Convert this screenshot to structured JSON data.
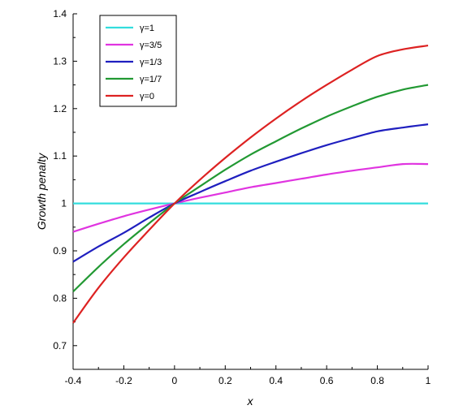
{
  "chart_data": {
    "type": "line",
    "title": "",
    "xlabel": "x",
    "ylabel": "Growth penalty",
    "xlim": [
      -0.4,
      1
    ],
    "ylim": [
      0.65,
      1.4
    ],
    "x_ticks": [
      -0.4,
      -0.2,
      0,
      0.2,
      0.4,
      0.6,
      0.8,
      1
    ],
    "x_tick_labels": [
      "-0.4",
      "-0.2",
      "0",
      "0.2",
      "0.4",
      "0.6",
      "0.8",
      "1"
    ],
    "y_ticks": [
      0.7,
      0.8,
      0.9,
      1,
      1.1,
      1.2,
      1.3,
      1.4
    ],
    "y_tick_labels": [
      "0.7",
      "0.8",
      "0.9",
      "1",
      "1.1",
      "1.2",
      "1.3",
      "1.4"
    ],
    "grid": false,
    "legend_position": "top-left",
    "x": [
      -0.4,
      -0.3,
      -0.2,
      -0.1,
      0,
      0.1,
      0.2,
      0.3,
      0.4,
      0.5,
      0.6,
      0.7,
      0.8,
      0.9,
      1
    ],
    "series": [
      {
        "name": "γ=1",
        "color": "#33dddd",
        "values": [
          1,
          1,
          1,
          1,
          1,
          1,
          1,
          1,
          1,
          1,
          1,
          1,
          1,
          1,
          1
        ]
      },
      {
        "name": "γ=3/5",
        "color": "#e034e0",
        "values": [
          0.94,
          0.957,
          0.973,
          0.987,
          1.0,
          1.012,
          1.023,
          1.034,
          1.043,
          1.052,
          1.061,
          1.069,
          1.076,
          1.083,
          1.083
        ]
      },
      {
        "name": "γ=1/3",
        "color": "#1f1fbf",
        "values": [
          0.877,
          0.909,
          0.938,
          0.97,
          1.0,
          1.024,
          1.047,
          1.069,
          1.088,
          1.106,
          1.123,
          1.138,
          1.152,
          1.16,
          1.167
        ]
      },
      {
        "name": "γ=1/7",
        "color": "#229933",
        "values": [
          0.814,
          0.866,
          0.914,
          0.958,
          1.0,
          1.036,
          1.071,
          1.103,
          1.131,
          1.158,
          1.183,
          1.205,
          1.225,
          1.24,
          1.25
        ]
      },
      {
        "name": "γ=0",
        "color": "#dd2222",
        "values": [
          0.748,
          0.822,
          0.886,
          0.944,
          1.0,
          1.05,
          1.096,
          1.139,
          1.179,
          1.216,
          1.25,
          1.282,
          1.311,
          1.325,
          1.333
        ]
      }
    ]
  }
}
